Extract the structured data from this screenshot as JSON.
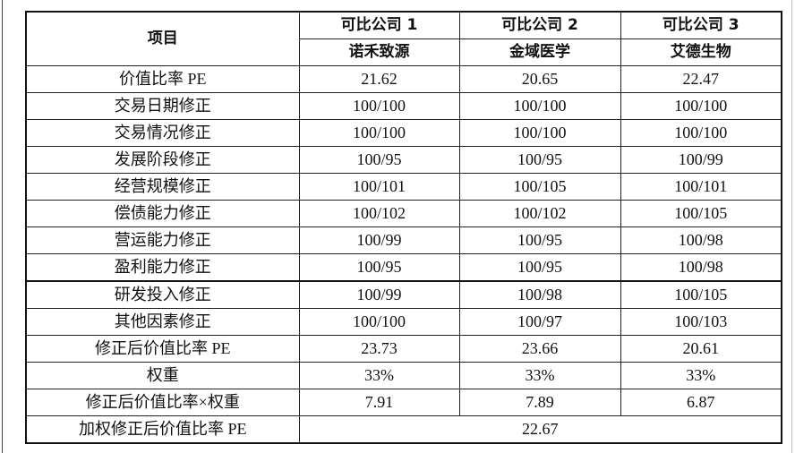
{
  "header": {
    "item_label": "项目",
    "companies": [
      {
        "label": "可比公司 1",
        "name": "诺禾致源"
      },
      {
        "label": "可比公司 2",
        "name": "金域医学"
      },
      {
        "label": "可比公司 3",
        "name": "艾德生物"
      }
    ]
  },
  "rows": [
    {
      "label": "价值比率 PE",
      "values": [
        "21.62",
        "20.65",
        "22.47"
      ]
    },
    {
      "label": "交易日期修正",
      "values": [
        "100/100",
        "100/100",
        "100/100"
      ]
    },
    {
      "label": "交易情况修正",
      "values": [
        "100/100",
        "100/100",
        "100/100"
      ]
    },
    {
      "label": "发展阶段修正",
      "values": [
        "100/95",
        "100/95",
        "100/99"
      ]
    },
    {
      "label": "经营规模修正",
      "values": [
        "100/101",
        "100/105",
        "100/101"
      ]
    },
    {
      "label": "偿债能力修正",
      "values": [
        "100/102",
        "100/102",
        "100/105"
      ]
    },
    {
      "label": "营运能力修正",
      "values": [
        "100/99",
        "100/95",
        "100/98"
      ]
    },
    {
      "label": "盈利能力修正",
      "values": [
        "100/95",
        "100/95",
        "100/98"
      ]
    },
    {
      "label": "研发投入修正",
      "values": [
        "100/99",
        "100/98",
        "100/105"
      ]
    },
    {
      "label": "其他因素修正",
      "values": [
        "100/100",
        "100/97",
        "100/103"
      ]
    },
    {
      "label": "修正后价值比率 PE",
      "values": [
        "23.73",
        "23.66",
        "20.61"
      ]
    },
    {
      "label": "权重",
      "values": [
        "33%",
        "33%",
        "33%"
      ]
    },
    {
      "label": "修正后价值比率×权重",
      "values": [
        "7.91",
        "7.89",
        "6.87"
      ]
    }
  ],
  "total": {
    "label": "加权修正后价值比率 PE",
    "value": "22.67"
  }
}
